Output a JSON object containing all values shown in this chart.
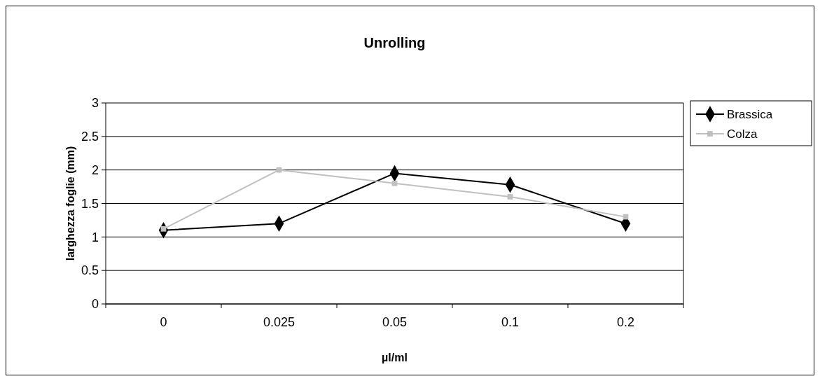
{
  "chart_data": {
    "type": "line",
    "title": "Unrolling",
    "xlabel": "µl/ml",
    "ylabel": "larghezza foglie (mm)",
    "categories": [
      "0",
      "0.025",
      "0.05",
      "0.1",
      "0.2"
    ],
    "series": [
      {
        "name": "Brassica",
        "color": "#000000",
        "marker": "diamond",
        "values": [
          1.1,
          1.2,
          1.95,
          1.78,
          1.2
        ]
      },
      {
        "name": "Colza",
        "color": "#c0c0c0",
        "marker": "square",
        "values": [
          1.12,
          2.0,
          1.8,
          1.6,
          1.3
        ]
      }
    ],
    "ylim": [
      0,
      3
    ],
    "yticks": [
      0,
      0.5,
      1,
      1.5,
      2,
      2.5,
      3
    ],
    "grid": "y",
    "legend": "right",
    "line_style": "solid"
  }
}
